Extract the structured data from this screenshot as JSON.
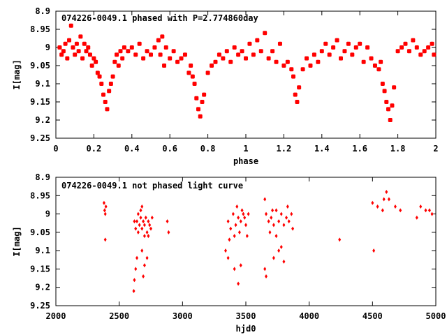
{
  "chart_data": [
    {
      "type": "scatter",
      "title": "074226-0049.1 phased with P=2.774860day",
      "xlabel": "phase",
      "ylabel": "I[mag]",
      "xlim": [
        0,
        2
      ],
      "ylim": [
        8.9,
        9.25
      ],
      "y_inverted": true,
      "x_ticks": [
        0,
        0.2,
        0.4,
        0.6,
        0.8,
        1,
        1.2,
        1.4,
        1.6,
        1.8,
        2
      ],
      "y_ticks": [
        8.9,
        8.95,
        9,
        9.05,
        9.1,
        9.15,
        9.2,
        9.25
      ],
      "marker_color": "#ff0000",
      "grid": false,
      "points": [
        [
          0.02,
          9.0
        ],
        [
          0.03,
          9.02
        ],
        [
          0.04,
          9.01
        ],
        [
          0.05,
          8.99
        ],
        [
          0.06,
          9.03
        ],
        [
          0.07,
          8.98
        ],
        [
          0.08,
          8.94
        ],
        [
          0.09,
          9.0
        ],
        [
          0.1,
          9.02
        ],
        [
          0.11,
          8.99
        ],
        [
          0.12,
          9.01
        ],
        [
          0.13,
          8.97
        ],
        [
          0.14,
          9.03
        ],
        [
          0.15,
          8.99
        ],
        [
          0.16,
          9.01
        ],
        [
          0.17,
          9.0
        ],
        [
          0.18,
          9.02
        ],
        [
          0.19,
          9.05
        ],
        [
          0.2,
          9.03
        ],
        [
          0.21,
          9.04
        ],
        [
          0.22,
          9.07
        ],
        [
          0.23,
          9.08
        ],
        [
          0.24,
          9.1
        ],
        [
          0.25,
          9.13
        ],
        [
          0.26,
          9.15
        ],
        [
          0.27,
          9.17
        ],
        [
          0.28,
          9.12
        ],
        [
          0.29,
          9.1
        ],
        [
          0.3,
          9.08
        ],
        [
          0.31,
          9.04
        ],
        [
          0.32,
          9.02
        ],
        [
          0.33,
          9.05
        ],
        [
          0.34,
          9.01
        ],
        [
          0.35,
          9.03
        ],
        [
          0.36,
          9.0
        ],
        [
          0.38,
          9.01
        ],
        [
          0.4,
          9.0
        ],
        [
          0.42,
          9.02
        ],
        [
          0.44,
          8.99
        ],
        [
          0.46,
          9.03
        ],
        [
          0.48,
          9.01
        ],
        [
          0.5,
          9.02
        ],
        [
          0.52,
          9.0
        ],
        [
          0.54,
          8.98
        ],
        [
          0.55,
          9.02
        ],
        [
          0.56,
          8.97
        ],
        [
          0.57,
          9.05
        ],
        [
          0.58,
          9.0
        ],
        [
          0.6,
          9.03
        ],
        [
          0.62,
          9.01
        ],
        [
          0.64,
          9.04
        ],
        [
          0.66,
          9.03
        ],
        [
          0.68,
          9.02
        ],
        [
          0.7,
          9.07
        ],
        [
          0.71,
          9.05
        ],
        [
          0.72,
          9.08
        ],
        [
          0.73,
          9.1
        ],
        [
          0.74,
          9.14
        ],
        [
          0.75,
          9.17
        ],
        [
          0.76,
          9.19
        ],
        [
          0.77,
          9.15
        ],
        [
          0.78,
          9.13
        ],
        [
          0.8,
          9.07
        ],
        [
          0.82,
          9.05
        ],
        [
          0.84,
          9.04
        ],
        [
          0.86,
          9.02
        ],
        [
          0.88,
          9.03
        ],
        [
          0.9,
          9.01
        ],
        [
          0.92,
          9.04
        ],
        [
          0.94,
          9.0
        ],
        [
          0.96,
          9.02
        ],
        [
          0.98,
          9.01
        ],
        [
          1.0,
          9.03
        ],
        [
          1.02,
          8.99
        ],
        [
          1.04,
          9.02
        ],
        [
          1.06,
          8.98
        ],
        [
          1.08,
          9.01
        ],
        [
          1.1,
          8.96
        ],
        [
          1.12,
          9.03
        ],
        [
          1.14,
          9.01
        ],
        [
          1.16,
          9.04
        ],
        [
          1.18,
          8.99
        ],
        [
          1.2,
          9.05
        ],
        [
          1.22,
          9.04
        ],
        [
          1.24,
          9.06
        ],
        [
          1.25,
          9.08
        ],
        [
          1.26,
          9.13
        ],
        [
          1.27,
          9.15
        ],
        [
          1.28,
          9.11
        ],
        [
          1.3,
          9.06
        ],
        [
          1.32,
          9.03
        ],
        [
          1.34,
          9.05
        ],
        [
          1.36,
          9.02
        ],
        [
          1.38,
          9.04
        ],
        [
          1.4,
          9.01
        ],
        [
          1.42,
          8.99
        ],
        [
          1.44,
          9.02
        ],
        [
          1.46,
          9.0
        ],
        [
          1.48,
          8.98
        ],
        [
          1.5,
          9.03
        ],
        [
          1.52,
          9.01
        ],
        [
          1.54,
          8.99
        ],
        [
          1.56,
          9.02
        ],
        [
          1.58,
          9.0
        ],
        [
          1.6,
          8.99
        ],
        [
          1.62,
          9.04
        ],
        [
          1.64,
          9.0
        ],
        [
          1.66,
          9.03
        ],
        [
          1.68,
          9.05
        ],
        [
          1.7,
          9.06
        ],
        [
          1.71,
          9.04
        ],
        [
          1.72,
          9.1
        ],
        [
          1.73,
          9.12
        ],
        [
          1.74,
          9.15
        ],
        [
          1.75,
          9.17
        ],
        [
          1.76,
          9.2
        ],
        [
          1.77,
          9.16
        ],
        [
          1.78,
          9.11
        ],
        [
          1.8,
          9.01
        ],
        [
          1.82,
          9.0
        ],
        [
          1.84,
          8.99
        ],
        [
          1.86,
          9.01
        ],
        [
          1.88,
          8.98
        ],
        [
          1.9,
          9.0
        ],
        [
          1.92,
          9.02
        ],
        [
          1.94,
          9.01
        ],
        [
          1.96,
          9.0
        ],
        [
          1.98,
          8.99
        ],
        [
          1.99,
          9.02
        ]
      ]
    },
    {
      "type": "scatter",
      "title": "074226-0049.1 not phased light curve",
      "xlabel": "hjd0",
      "ylabel": "I[mag]",
      "xlim": [
        2000,
        5000
      ],
      "ylim": [
        8.9,
        9.25
      ],
      "y_inverted": true,
      "x_ticks": [
        2000,
        2500,
        3000,
        3500,
        4000,
        4500,
        5000
      ],
      "y_ticks": [
        8.9,
        8.95,
        9,
        9.05,
        9.1,
        9.15,
        9.2,
        9.25
      ],
      "marker_color": "#ff0000",
      "grid": false,
      "points": [
        [
          2380,
          8.97
        ],
        [
          2385,
          8.99
        ],
        [
          2390,
          9.0
        ],
        [
          2395,
          8.98
        ],
        [
          2390,
          9.07
        ],
        [
          2620,
          9.02
        ],
        [
          2630,
          9.04
        ],
        [
          2640,
          9.02
        ],
        [
          2650,
          9.05
        ],
        [
          2660,
          9.03
        ],
        [
          2670,
          9.01
        ],
        [
          2680,
          9.04
        ],
        [
          2690,
          9.02
        ],
        [
          2700,
          9.03
        ],
        [
          2710,
          9.01
        ],
        [
          2720,
          9.05
        ],
        [
          2730,
          9.02
        ],
        [
          2740,
          9.03
        ],
        [
          2750,
          9.04
        ],
        [
          2760,
          9.01
        ],
        [
          2640,
          9.12
        ],
        [
          2630,
          9.15
        ],
        [
          2620,
          9.18
        ],
        [
          2615,
          9.21
        ],
        [
          2680,
          9.1
        ],
        [
          2700,
          9.14
        ],
        [
          2690,
          9.17
        ],
        [
          2720,
          9.12
        ],
        [
          2650,
          9.0
        ],
        [
          2670,
          8.99
        ],
        [
          2700,
          9.06
        ],
        [
          2730,
          9.06
        ],
        [
          2680,
          8.98
        ],
        [
          2880,
          9.02
        ],
        [
          2890,
          9.05
        ],
        [
          3360,
          9.02
        ],
        [
          3380,
          9.04
        ],
        [
          3400,
          9.0
        ],
        [
          3420,
          9.03
        ],
        [
          3440,
          9.01
        ],
        [
          3460,
          9.02
        ],
        [
          3480,
          9.0
        ],
        [
          3500,
          9.03
        ],
        [
          3410,
          9.06
        ],
        [
          3430,
          8.98
        ],
        [
          3450,
          9.05
        ],
        [
          3470,
          8.99
        ],
        [
          3490,
          9.01
        ],
        [
          3370,
          9.07
        ],
        [
          3340,
          9.1
        ],
        [
          3360,
          9.12
        ],
        [
          3410,
          9.15
        ],
        [
          3440,
          9.19
        ],
        [
          3460,
          9.14
        ],
        [
          3510,
          9.06
        ],
        [
          3520,
          9.0
        ],
        [
          3650,
          8.96
        ],
        [
          3660,
          9.0
        ],
        [
          3680,
          9.02
        ],
        [
          3700,
          9.01
        ],
        [
          3720,
          9.03
        ],
        [
          3740,
          8.99
        ],
        [
          3760,
          9.02
        ],
        [
          3780,
          9.0
        ],
        [
          3800,
          9.03
        ],
        [
          3820,
          9.01
        ],
        [
          3840,
          9.02
        ],
        [
          3860,
          9.0
        ],
        [
          3690,
          9.05
        ],
        [
          3740,
          9.06
        ],
        [
          3650,
          9.15
        ],
        [
          3660,
          9.17
        ],
        [
          3720,
          9.12
        ],
        [
          3760,
          9.1
        ],
        [
          3800,
          9.13
        ],
        [
          3780,
          9.09
        ],
        [
          3830,
          8.98
        ],
        [
          3710,
          8.99
        ],
        [
          3870,
          9.04
        ],
        [
          4240,
          9.07
        ],
        [
          4500,
          8.97
        ],
        [
          4510,
          9.1
        ],
        [
          4540,
          8.98
        ],
        [
          4580,
          8.99
        ],
        [
          4590,
          8.96
        ],
        [
          4610,
          8.94
        ],
        [
          4630,
          8.96
        ],
        [
          4680,
          8.98
        ],
        [
          4720,
          8.99
        ],
        [
          4850,
          9.01
        ],
        [
          4880,
          8.98
        ],
        [
          4920,
          8.99
        ],
        [
          4950,
          8.99
        ],
        [
          4970,
          9.0
        ]
      ]
    }
  ]
}
